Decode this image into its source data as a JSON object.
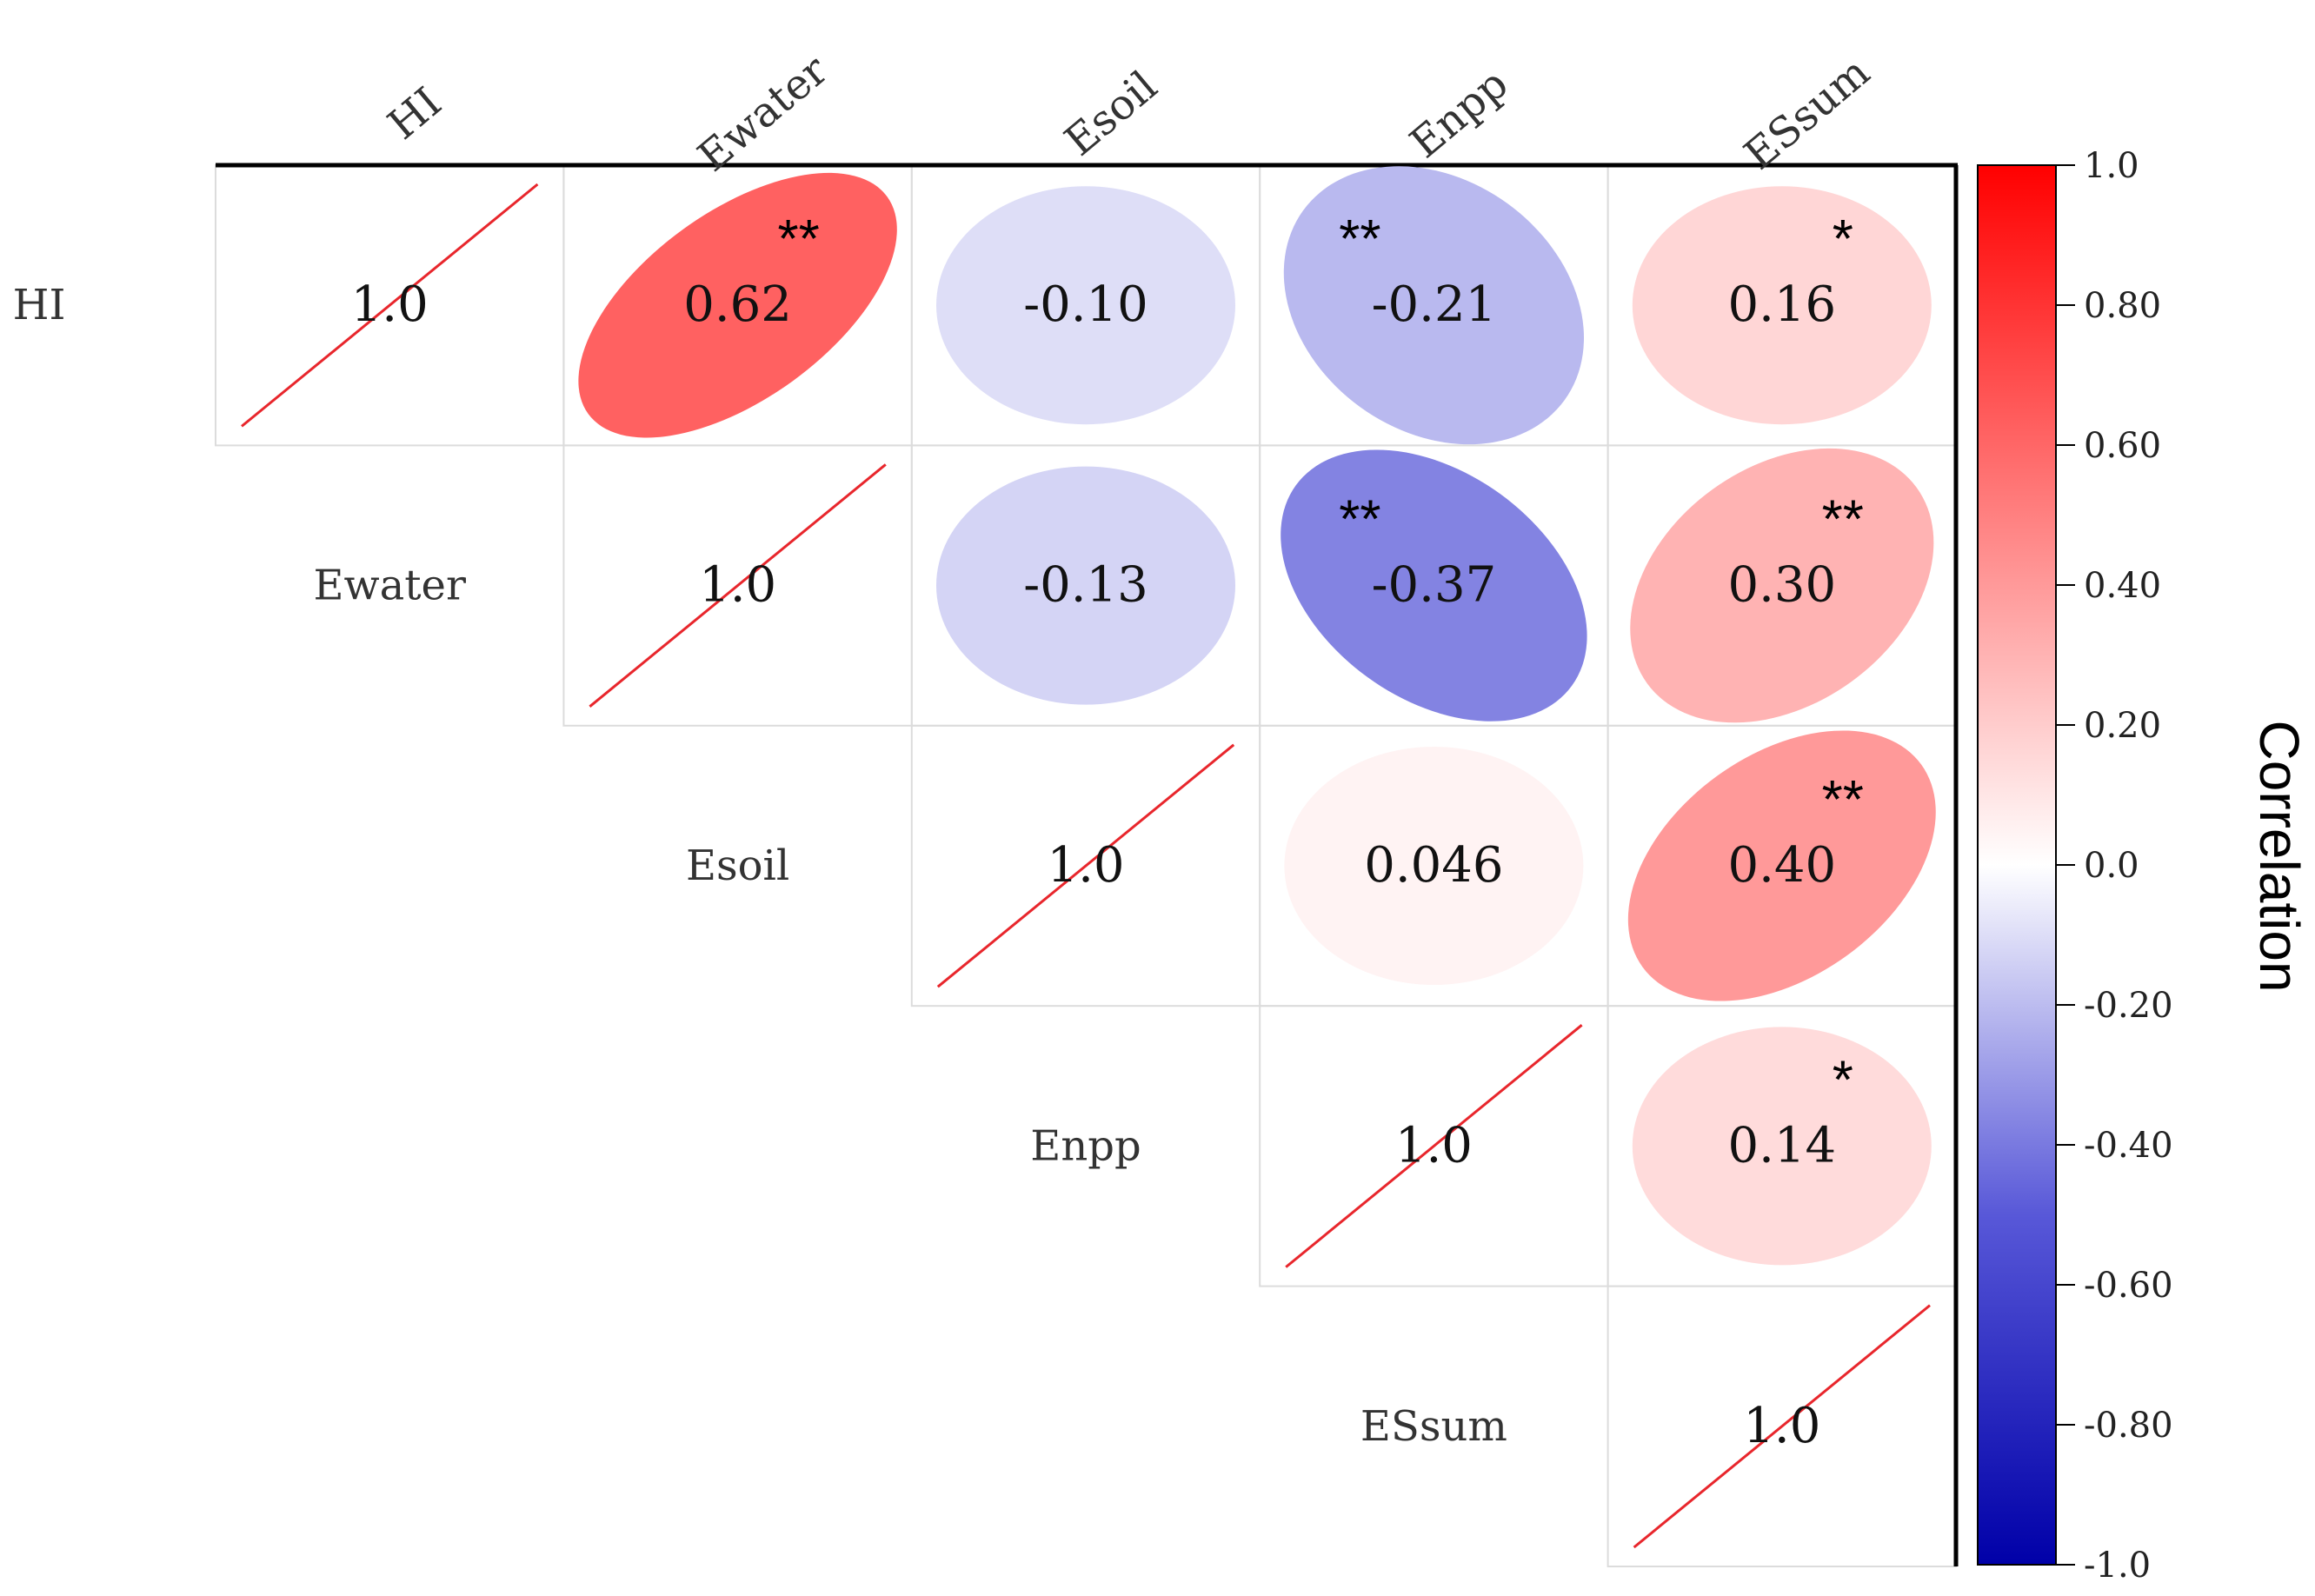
{
  "chart_data": {
    "type": "heatmap",
    "subtype": "upper-triangle correlation matrix with ellipse glyphs",
    "variables": [
      "HI",
      "Ewater",
      "Esoil",
      "Enpp",
      "ESsum"
    ],
    "cells": [
      {
        "row": "HI",
        "col": "HI",
        "value": 1.0,
        "label": "1.0",
        "sig": ""
      },
      {
        "row": "HI",
        "col": "Ewater",
        "value": 0.62,
        "label": "0.62",
        "sig": "**"
      },
      {
        "row": "HI",
        "col": "Esoil",
        "value": -0.1,
        "label": "-0.10",
        "sig": ""
      },
      {
        "row": "HI",
        "col": "Enpp",
        "value": -0.21,
        "label": "-0.21",
        "sig": "**"
      },
      {
        "row": "HI",
        "col": "ESsum",
        "value": 0.16,
        "label": "0.16",
        "sig": "*"
      },
      {
        "row": "Ewater",
        "col": "Ewater",
        "value": 1.0,
        "label": "1.0",
        "sig": ""
      },
      {
        "row": "Ewater",
        "col": "Esoil",
        "value": -0.13,
        "label": "-0.13",
        "sig": ""
      },
      {
        "row": "Ewater",
        "col": "Enpp",
        "value": -0.37,
        "label": "-0.37",
        "sig": "**"
      },
      {
        "row": "Ewater",
        "col": "ESsum",
        "value": 0.3,
        "label": "0.30",
        "sig": "**"
      },
      {
        "row": "Esoil",
        "col": "Esoil",
        "value": 1.0,
        "label": "1.0",
        "sig": ""
      },
      {
        "row": "Esoil",
        "col": "Enpp",
        "value": 0.046,
        "label": "0.046",
        "sig": ""
      },
      {
        "row": "Esoil",
        "col": "ESsum",
        "value": 0.4,
        "label": "0.40",
        "sig": "**"
      },
      {
        "row": "Enpp",
        "col": "Enpp",
        "value": 1.0,
        "label": "1.0",
        "sig": ""
      },
      {
        "row": "Enpp",
        "col": "ESsum",
        "value": 0.14,
        "label": "0.14",
        "sig": "*"
      },
      {
        "row": "ESsum",
        "col": "ESsum",
        "value": 1.0,
        "label": "1.0",
        "sig": ""
      }
    ],
    "colorbar": {
      "label": "Correlation",
      "range": [
        -1.0,
        1.0
      ],
      "ticks": [
        1.0,
        0.8,
        0.6,
        0.4,
        0.2,
        0.0,
        -0.2,
        -0.4,
        -0.6,
        -0.8,
        -1.0
      ],
      "tick_labels": [
        "1.0",
        "0.80",
        "0.60",
        "0.40",
        "0.20",
        "0.0",
        "-0.20",
        "-0.40",
        "-0.60",
        "-0.80",
        "-1.0"
      ],
      "colors": {
        "low": "#0000a8",
        "mid": "#ffffff",
        "high": "#ff0000"
      }
    },
    "diagonal_line_color": "#e8262c",
    "grid": true
  }
}
